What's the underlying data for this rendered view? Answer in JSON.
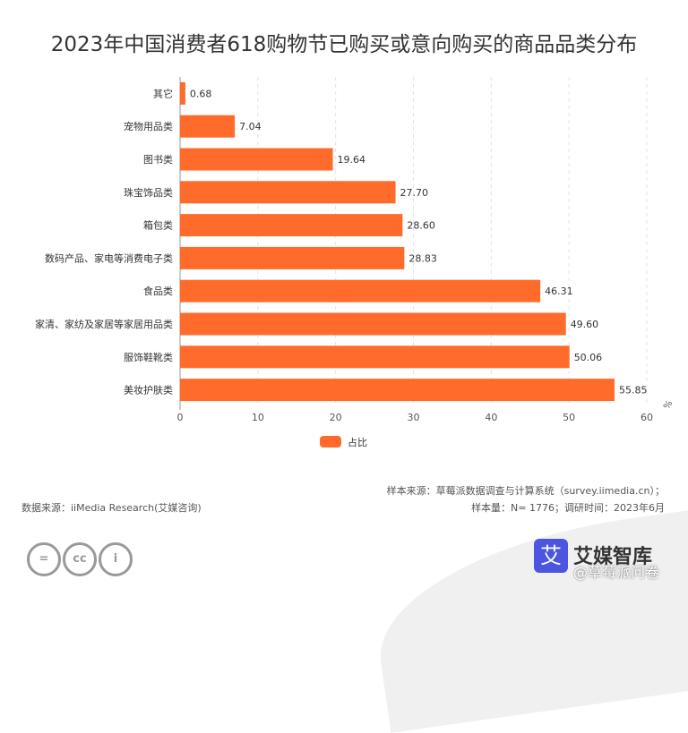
{
  "chart_data": {
    "type": "bar",
    "orientation": "horizontal",
    "title": "2023年中国消费者618购物节已购买或意向购买的商品品类分布",
    "categories": [
      "其它",
      "宠物用品类",
      "图书类",
      "珠宝饰品类",
      "箱包类",
      "数码产品、家电等消费电子类",
      "食品类",
      "家清、家纺及家居等家居用品类",
      "服饰鞋靴类",
      "美妆护肤类"
    ],
    "series": [
      {
        "name": "占比",
        "values": [
          0.68,
          7.04,
          19.64,
          27.7,
          28.6,
          28.83,
          46.31,
          49.6,
          50.06,
          55.85
        ]
      }
    ],
    "value_labels": [
      "0.68",
      "7.04",
      "19.64",
      "27.70",
      "28.60",
      "28.83",
      "46.31",
      "49.60",
      "50.06",
      "55.85"
    ],
    "xlim": [
      0,
      60
    ],
    "xticks": [
      "0",
      "10",
      "20",
      "30",
      "40",
      "50",
      "60"
    ],
    "unit": "%",
    "grid": true,
    "legend": "bottom",
    "color": "#ff6b2b"
  },
  "footer": {
    "source": "数据来源：iiMedia Research(艾媒咨询)",
    "sample_source": "样本来源：草莓派数据调查与计算系统（survey.iimedia.cn）；",
    "sample_size": "样本量：N= 1776；调研时间：2023年6月",
    "brand": "艾媒智库",
    "watermark": "@草莓派问卷"
  }
}
